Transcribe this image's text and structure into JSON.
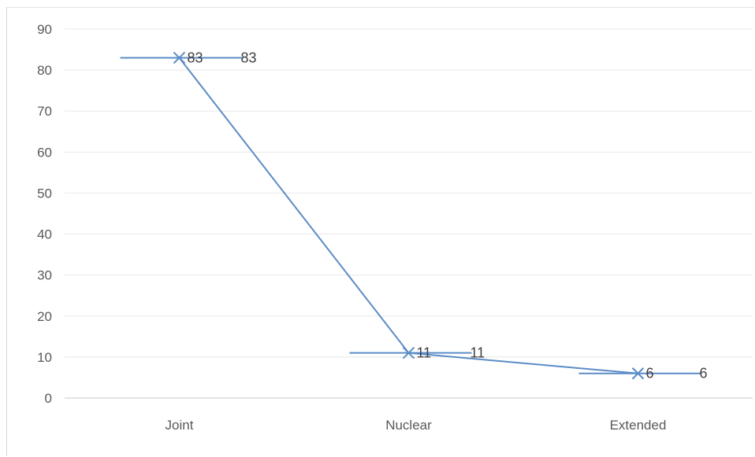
{
  "chart_data": {
    "type": "line",
    "categories": [
      "Joint",
      "Nuclear",
      "Extended"
    ],
    "series": [
      {
        "values": [
          83,
          11,
          6
        ],
        "color": "#5b8cc6",
        "marker": "x"
      }
    ],
    "data_labels": [
      "83",
      "11",
      "6"
    ],
    "ylim": [
      0,
      90
    ],
    "yticks": [
      "0",
      "10",
      "20",
      "30",
      "40",
      "50",
      "60",
      "70",
      "80",
      "90"
    ],
    "grid": true,
    "legend": "none"
  }
}
